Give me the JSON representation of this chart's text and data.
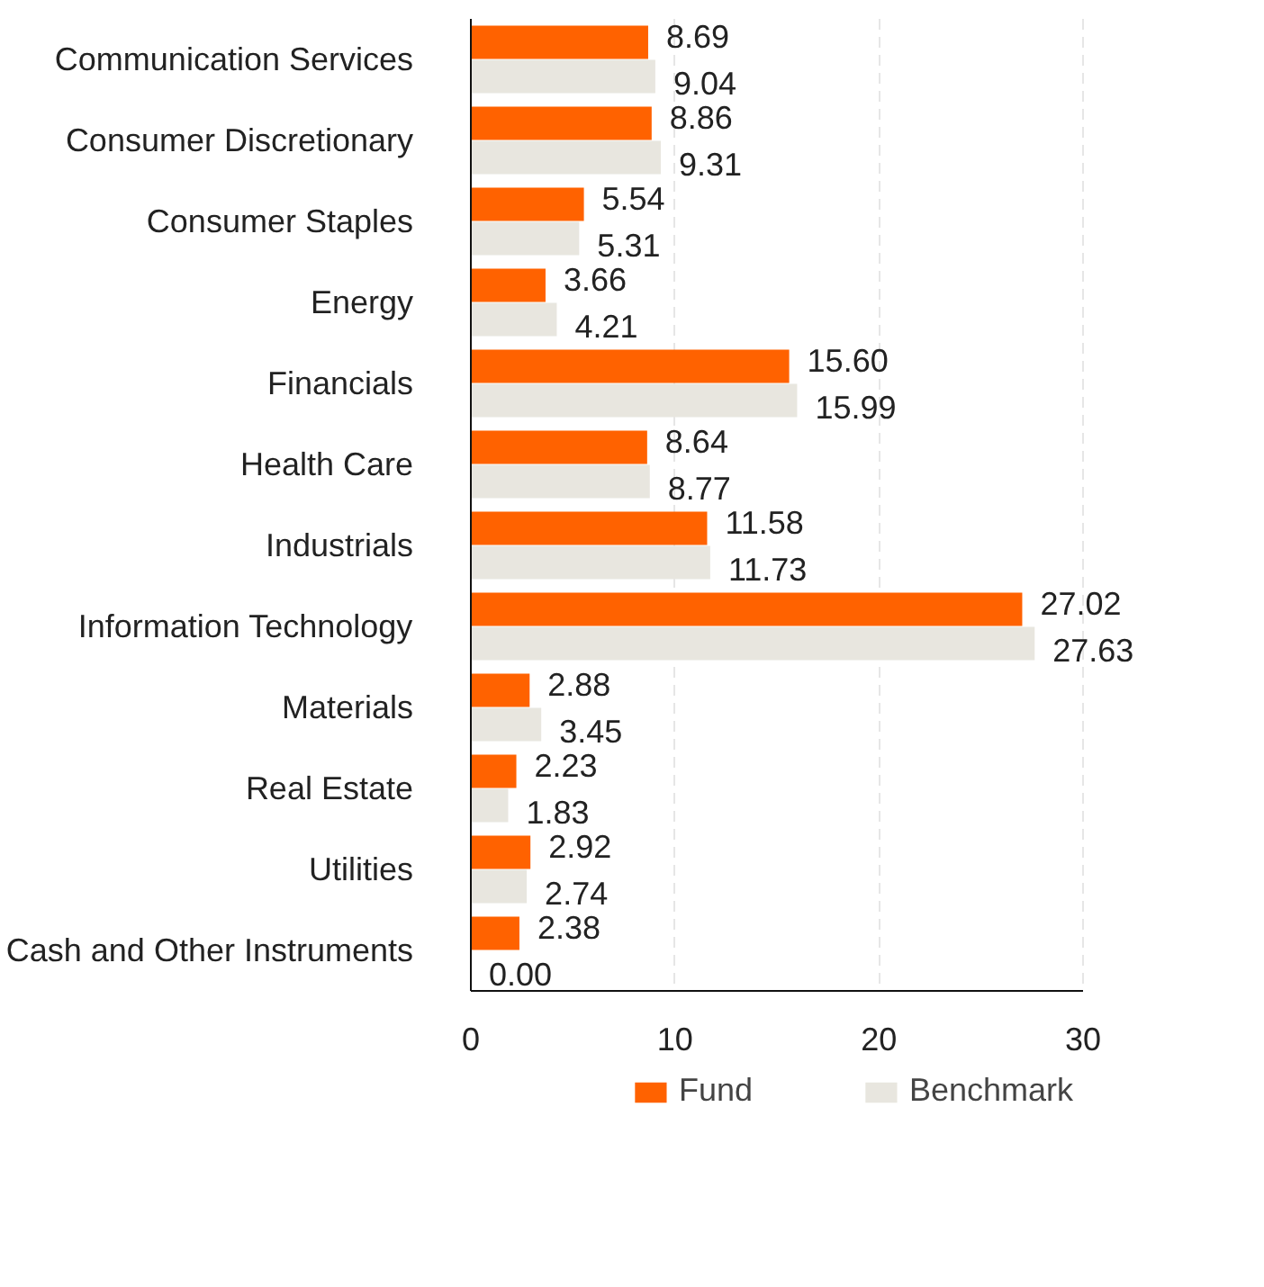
{
  "chart_data": {
    "type": "bar",
    "orientation": "horizontal",
    "categories": [
      "Communication Services",
      "Consumer Discretionary",
      "Consumer Staples",
      "Energy",
      "Financials",
      "Health Care",
      "Industrials",
      "Information Technology",
      "Materials",
      "Real Estate",
      "Utilities",
      "Cash and Other Instruments"
    ],
    "series": [
      {
        "name": "Fund",
        "color": "#ff6200",
        "values": [
          8.69,
          8.86,
          5.54,
          3.66,
          15.6,
          8.64,
          11.58,
          27.02,
          2.88,
          2.23,
          2.92,
          2.38
        ],
        "value_labels": [
          "8.69",
          "8.86",
          "5.54",
          "3.66",
          "15.60",
          "8.64",
          "11.58",
          "27.02",
          "2.88",
          "2.23",
          "2.92",
          "2.38"
        ]
      },
      {
        "name": "Benchmark",
        "color": "#e8e6df",
        "values": [
          9.04,
          9.31,
          5.31,
          4.21,
          15.99,
          8.77,
          11.73,
          27.63,
          3.45,
          1.83,
          2.74,
          0
        ],
        "value_labels": [
          "9.04",
          "9.31",
          "5.31",
          "4.21",
          "15.99",
          "8.77",
          "11.73",
          "27.63",
          "3.45",
          "1.83",
          "2.74",
          "0.00"
        ]
      }
    ],
    "xlim": [
      0,
      30
    ],
    "xticks": [
      0,
      10,
      20,
      30
    ],
    "grid": "x",
    "legend": "bottom"
  }
}
